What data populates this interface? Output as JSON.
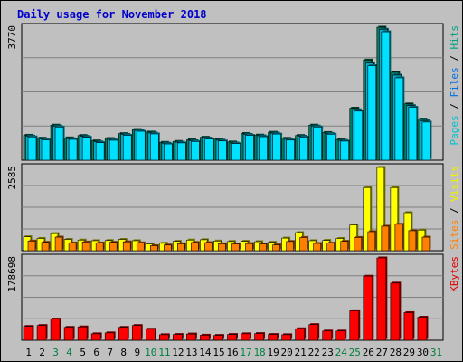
{
  "chart_data": {
    "type": "bar",
    "title": "Daily usage for November 2018",
    "categories": [
      "1",
      "2",
      "3",
      "4",
      "5",
      "6",
      "7",
      "8",
      "9",
      "10",
      "11",
      "12",
      "13",
      "14",
      "15",
      "16",
      "17",
      "18",
      "19",
      "20",
      "21",
      "22",
      "23",
      "24",
      "25",
      "26",
      "27",
      "28",
      "29",
      "30",
      "31"
    ],
    "weekend_days": [
      "3",
      "4",
      "10",
      "11",
      "17",
      "18",
      "24",
      "25",
      "31"
    ],
    "panels": [
      {
        "name": "hits-files-pages",
        "axis_max_label": "3770",
        "ylim": [
          0,
          3770
        ],
        "side_label": [
          {
            "text": "Pages",
            "color": "#00c0d0"
          },
          {
            "text": " / ",
            "color": "#000000"
          },
          {
            "text": "Files",
            "color": "#0070e0"
          },
          {
            "text": " / ",
            "color": "#000000"
          },
          {
            "text": "Hits",
            "color": "#00a080"
          }
        ],
        "series": [
          {
            "name": "Hits",
            "color": "#008060",
            "values": [
              707,
              624,
              994,
              633,
              700,
              548,
              615,
              753,
              870,
              797,
              505,
              533,
              577,
              651,
              593,
              516,
              757,
              712,
              791,
              620,
              701,
              995,
              785,
              587,
              1475,
              2838,
              3770,
              2491,
              1595,
              1163,
              0
            ]
          },
          {
            "name": "Files",
            "color": "#00b0d0",
            "values": [
              684,
              599,
              966,
              610,
              674,
              520,
              588,
              731,
              845,
              771,
              481,
              510,
              552,
              625,
              567,
              489,
              732,
              691,
              766,
              592,
              678,
              967,
              759,
              560,
              1430,
              2750,
              3710,
              2410,
              1545,
              1120,
              0
            ]
          },
          {
            "name": "Pages",
            "color": "#00e0ff",
            "values": [
              660,
              575,
              940,
              590,
              650,
              495,
              565,
              705,
              820,
              745,
              460,
              490,
              530,
              600,
              545,
              470,
              705,
              665,
              740,
              570,
              655,
              940,
              735,
              540,
              1390,
              2680,
              3640,
              2335,
              1500,
              1080,
              0
            ]
          }
        ]
      },
      {
        "name": "visits-sites",
        "axis_max_label": "2585",
        "ylim": [
          0,
          2585
        ],
        "side_label": [
          {
            "text": "Sites",
            "color": "#ff8000"
          },
          {
            "text": " / ",
            "color": "#000000"
          },
          {
            "text": "Visits",
            "color": "#f0f000"
          }
        ],
        "series": [
          {
            "name": "Visits",
            "color": "#ffff00",
            "values": [
              430,
              380,
              530,
              350,
              330,
              310,
              315,
              350,
              310,
              210,
              230,
              290,
              330,
              340,
              300,
              285,
              290,
              280,
              260,
              390,
              560,
              310,
              320,
              380,
              800,
              1960,
              2585,
              1960,
              1180,
              640,
              0
            ]
          },
          {
            "name": "Sites",
            "color": "#ff8000",
            "values": [
              300,
              260,
              420,
              240,
              270,
              240,
              260,
              275,
              245,
              155,
              175,
              215,
              255,
              250,
              215,
              210,
              220,
              210,
              180,
              285,
              410,
              225,
              235,
              290,
              410,
              590,
              760,
              820,
              620,
              420,
              0
            ]
          }
        ]
      },
      {
        "name": "kbytes",
        "axis_max_label": "178698",
        "ylim": [
          0,
          178698
        ],
        "side_label": [
          {
            "text": "KBytes",
            "color": "#e00000"
          }
        ],
        "series": [
          {
            "name": "KBytes",
            "color": "#ff0000",
            "values": [
              30000,
              32000,
              46000,
              28000,
              29000,
              14000,
              16000,
              28000,
              32000,
              24000,
              12000,
              12500,
              13500,
              11000,
              10500,
              12500,
              14000,
              14500,
              12500,
              12000,
              25000,
              34000,
              20000,
              20000,
              64000,
              139000,
              178698,
              124000,
              60000,
              50000,
              0
            ]
          }
        ]
      }
    ]
  }
}
